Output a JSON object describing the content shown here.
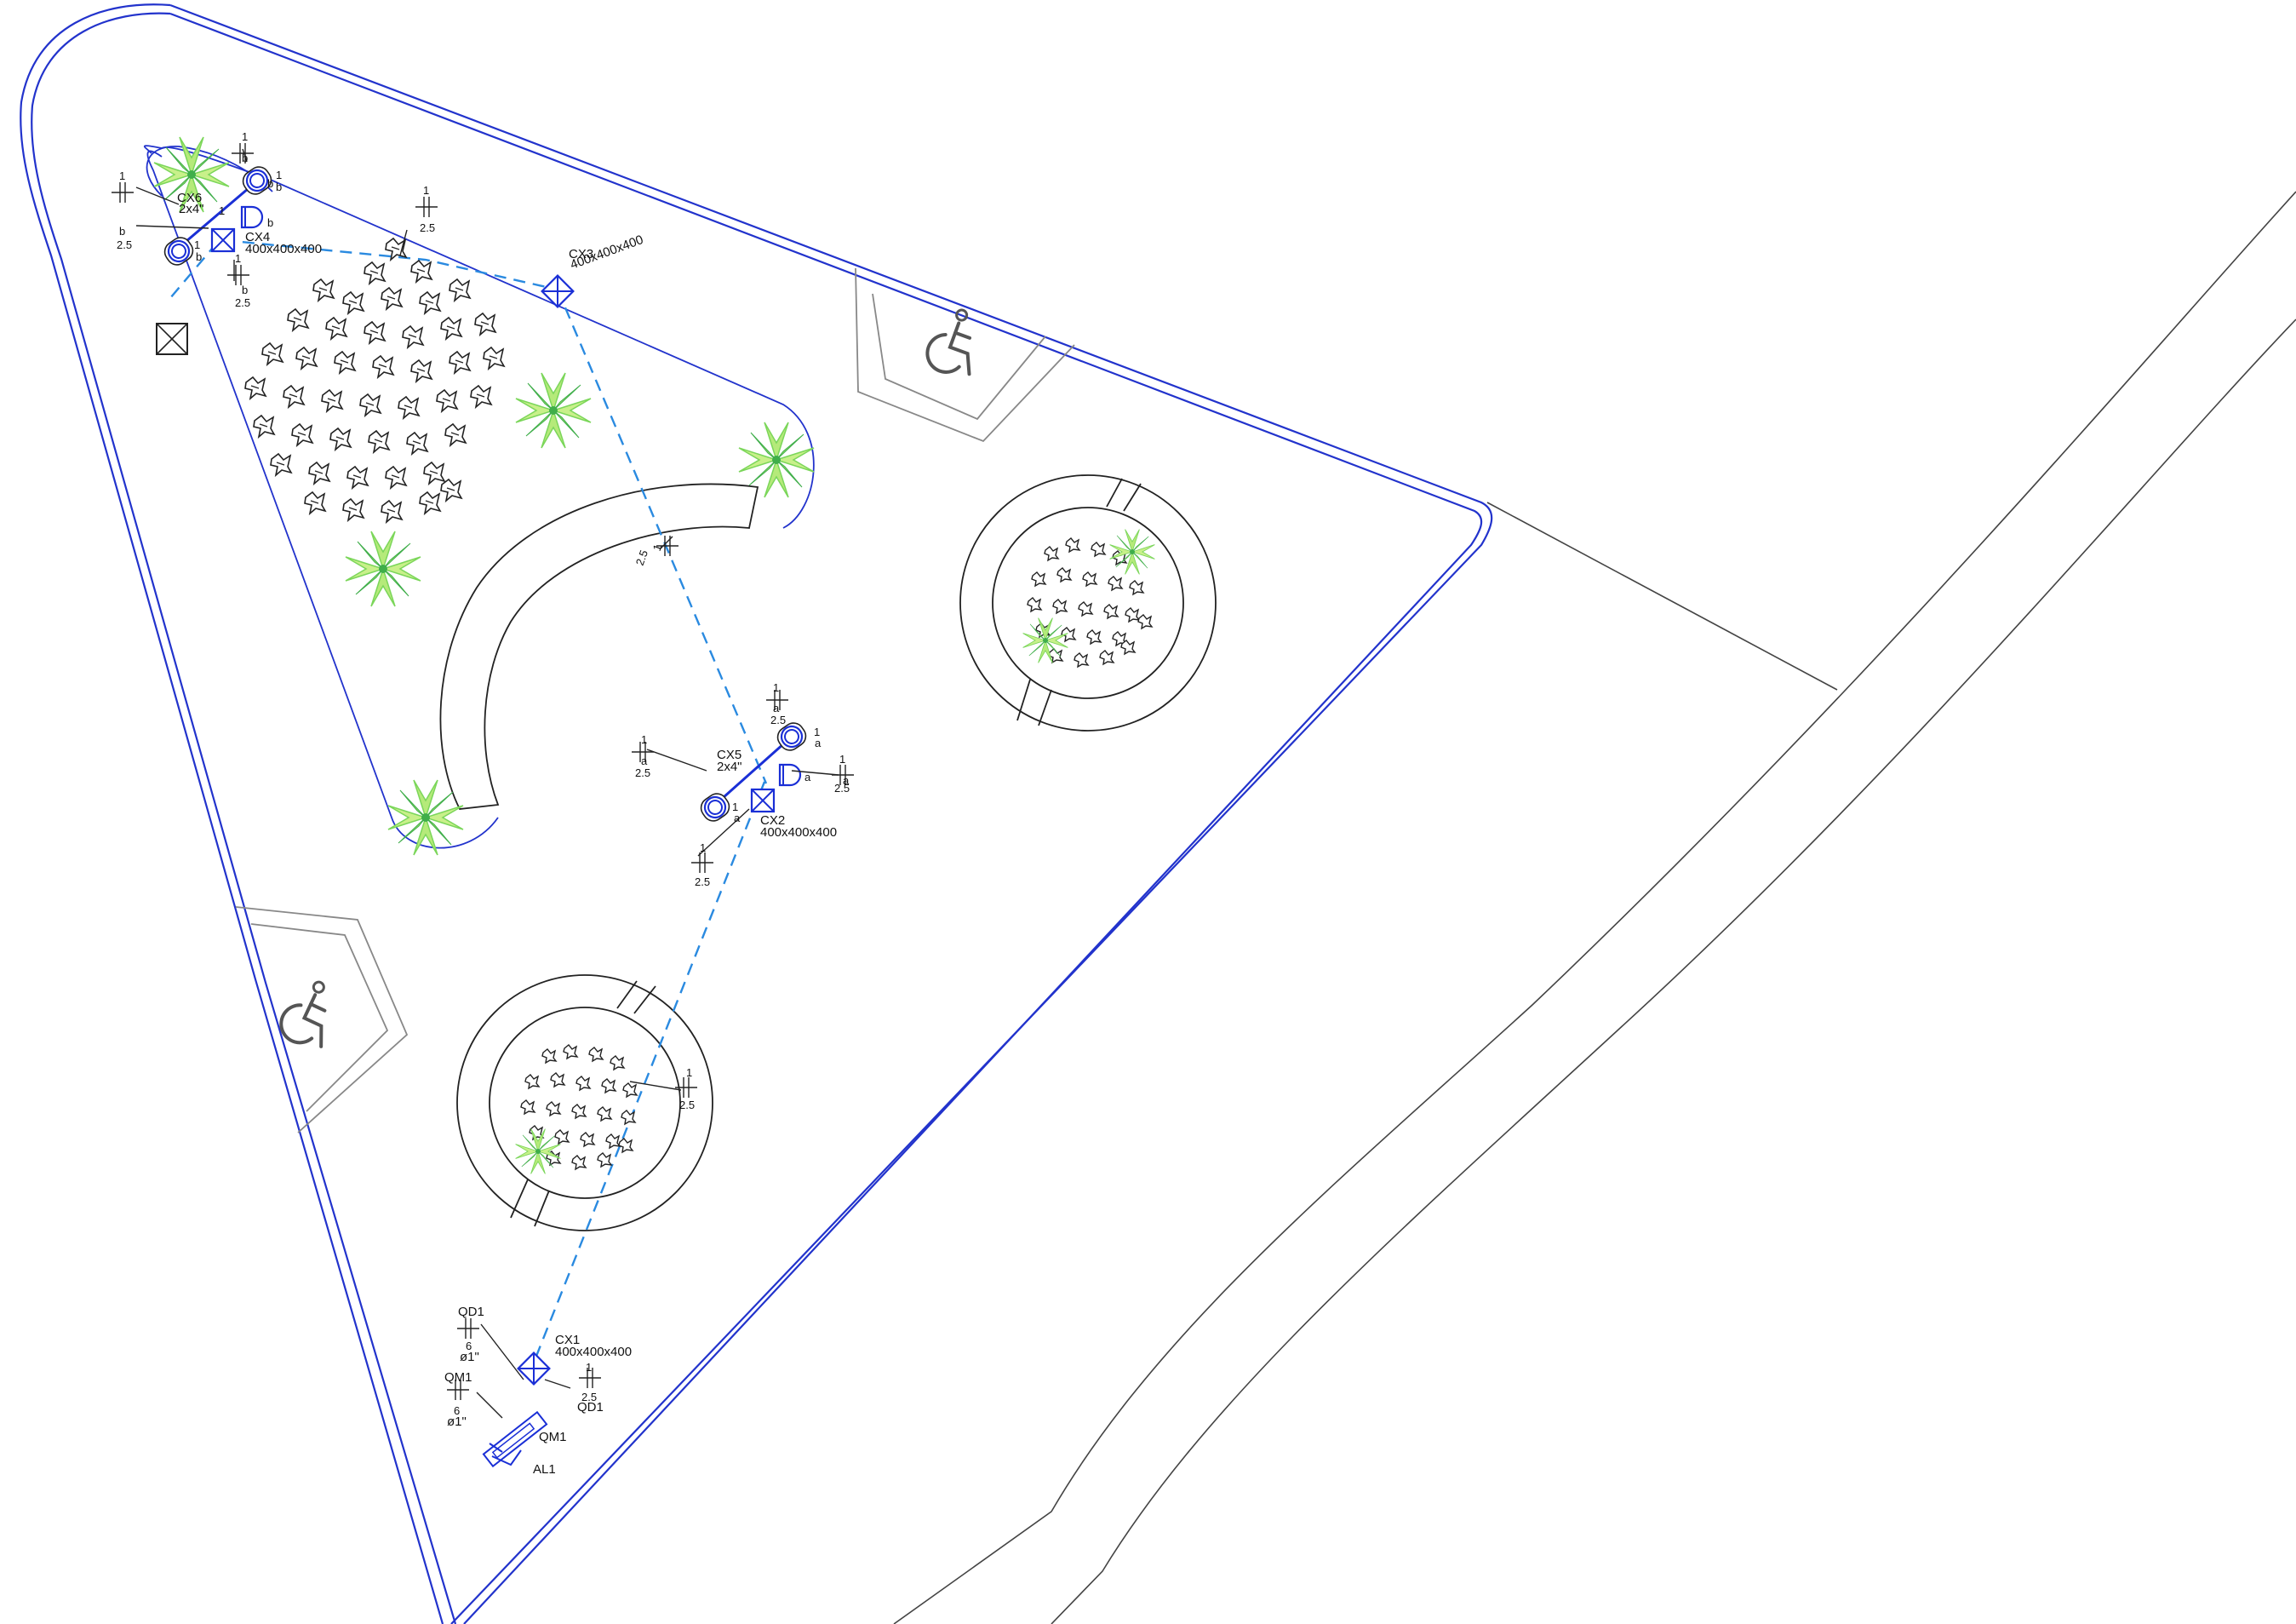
{
  "drawing": {
    "colors": {
      "background": "#ffffff",
      "boundary": "#2233cc",
      "pipe_dashed": "#2a8ae0",
      "equipment": "#1a2fd6",
      "linework": "#222222",
      "parking": "#888888",
      "vegetation_light": "#c8f08a",
      "vegetation_mid": "#7bd65a",
      "vegetation_dark": "#3fae4a"
    },
    "labels": {
      "cx6": "CX6",
      "cx6_pipe": "2x4\"",
      "cx4": "CX4",
      "cx4_size": "400x400x400",
      "cx3": "CX3",
      "cx3_size": "400x400x400",
      "cx5": "CX5",
      "cx5_pipe": "2x4\"",
      "cx2": "CX2",
      "cx2_size": "400x400x400",
      "cx1": "CX1",
      "cx1_size": "400x400x400",
      "qd1_top": "QD1",
      "qd1_top_count": "6",
      "qd1_top_dia": "ø1\"",
      "qm1_left": "QM1",
      "qm1_left_count": "6",
      "qm1_left_dia": "ø1\"",
      "qm1_panel": "QM1",
      "al1": "AL1",
      "qd1_right": "QD1",
      "qd1_right_val": "2.5"
    },
    "circuit_tags": [
      {
        "n": "1",
        "c": "b",
        "v": "2.5"
      },
      {
        "n": "1",
        "c": "",
        "v": "2.5"
      },
      {
        "n": "1",
        "c": "b",
        "v": "2.5"
      },
      {
        "n": "1",
        "c": "b",
        "v": "2.5"
      },
      {
        "n": "1",
        "c": "b",
        "v": "2.5"
      },
      {
        "n": "1",
        "c": "b",
        "v": ""
      },
      {
        "n": "1",
        "c": "",
        "v": "2.5"
      },
      {
        "n": "1",
        "c": "a",
        "v": "2.5"
      },
      {
        "n": "1",
        "c": "a",
        "v": "2.5"
      },
      {
        "n": "1",
        "c": "a",
        "v": "2.5"
      },
      {
        "n": "1",
        "c": "",
        "v": "2.5"
      },
      {
        "n": "1",
        "c": "",
        "v": "2.5"
      },
      {
        "n": "1",
        "c": "",
        "v": "2.5"
      }
    ],
    "fixture_tags": [
      "1",
      "b",
      "1",
      "b",
      "1",
      "a",
      "a",
      "1",
      "a"
    ],
    "icons": [
      "wheelchair-icon",
      "palm-plant-icon",
      "shrub-cluster-icon",
      "junction-box-icon",
      "floodlight-icon"
    ]
  }
}
